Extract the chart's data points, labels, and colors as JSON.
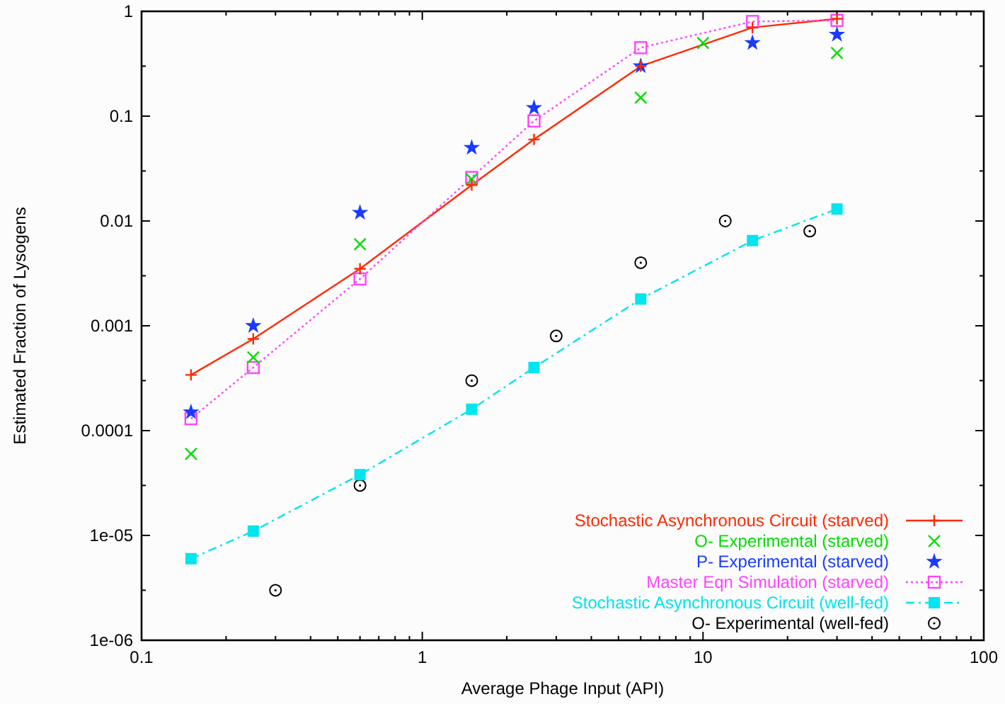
{
  "chart_data": {
    "type": "line",
    "xlabel": "Average Phage Input (API)",
    "ylabel": "Estimated Fraction of Lysogens",
    "log": "xy",
    "xlim": [
      0.1,
      100
    ],
    "ylim": [
      1e-06,
      1
    ],
    "xticks": [
      0.1,
      {
        "value": 0.2,
        "label": null
      },
      {
        "value": 0.3,
        "label": null
      },
      {
        "value": 0.4,
        "label": null
      },
      {
        "value": 0.5,
        "label": null
      },
      {
        "value": 0.6,
        "label": null
      },
      {
        "value": 0.7,
        "label": null
      },
      {
        "value": 0.8,
        "label": null
      },
      {
        "value": 0.9,
        "label": null
      },
      1,
      {
        "value": 2,
        "label": null
      },
      {
        "value": 3,
        "label": null
      },
      {
        "value": 4,
        "label": null
      },
      {
        "value": 5,
        "label": null
      },
      {
        "value": 6,
        "label": null
      },
      {
        "value": 7,
        "label": null
      },
      {
        "value": 8,
        "label": null
      },
      {
        "value": 9,
        "label": null
      },
      10,
      {
        "value": 20,
        "label": null
      },
      {
        "value": 30,
        "label": null
      },
      {
        "value": 40,
        "label": null
      },
      {
        "value": 50,
        "label": null
      },
      {
        "value": 60,
        "label": null
      },
      {
        "value": 70,
        "label": null
      },
      {
        "value": 80,
        "label": null
      },
      {
        "value": 90,
        "label": null
      },
      100
    ],
    "yticks": [
      {
        "value": 1e-06,
        "label": "1e-06"
      },
      {
        "value": 3e-06,
        "label": null
      },
      {
        "value": 1e-05,
        "label": "1e-05"
      },
      {
        "value": 3e-05,
        "label": null
      },
      {
        "value": 0.0001,
        "label": "0.0001"
      },
      {
        "value": 0.0003,
        "label": null
      },
      0.001,
      {
        "value": 0.003,
        "label": null
      },
      0.01,
      {
        "value": 0.03,
        "label": null
      },
      0.1,
      {
        "value": 0.3,
        "label": null
      },
      1
    ],
    "legend": "bottom right",
    "grid": false,
    "series": [
      {
        "name": "Stochastic Asynchronous Circuit (starved)",
        "color": "#ff2a00",
        "marker": "cross",
        "line_style": "solid",
        "x": [
          0.15,
          0.25,
          0.6,
          1.5,
          2.5,
          6,
          15,
          30
        ],
        "values": [
          0.00034,
          0.00075,
          0.0035,
          0.022,
          0.06,
          0.3,
          0.7,
          0.85
        ]
      },
      {
        "name": "O- Experimental (starved)",
        "type": "scatter",
        "color": "#00dd00",
        "marker": "x",
        "x": [
          0.15,
          0.25,
          0.6,
          1.5,
          6,
          10,
          30
        ],
        "values": [
          6e-05,
          0.0005,
          0.006,
          0.025,
          0.15,
          0.5,
          0.4
        ]
      },
      {
        "name": "P- Experimental (starved)",
        "type": "scatter",
        "color": "#1a3aff",
        "marker": "star",
        "x": [
          0.15,
          0.25,
          0.6,
          1.5,
          2.5,
          6,
          15,
          30
        ],
        "values": [
          0.00015,
          0.001,
          0.012,
          0.05,
          0.12,
          0.3,
          0.5,
          0.6
        ]
      },
      {
        "name": "Master Eqn Simulation (starved)",
        "color": "#ff44ff",
        "marker": "square",
        "line_style": "dotted",
        "x": [
          0.15,
          0.25,
          0.6,
          1.5,
          2.5,
          6,
          15,
          30
        ],
        "values": [
          0.00013,
          0.0004,
          0.0028,
          0.026,
          0.09,
          0.45,
          0.8,
          0.82
        ]
      },
      {
        "name": "Stochastic Asynchronous Circuit (well-fed)",
        "color": "#00e5ee",
        "marker": "square-filled",
        "line_style": "dashdot",
        "x": [
          0.15,
          0.25,
          0.6,
          1.5,
          2.5,
          6,
          15,
          30
        ],
        "values": [
          6e-06,
          1.1e-05,
          3.8e-05,
          0.00016,
          0.0004,
          0.0018,
          0.0065,
          0.013
        ]
      },
      {
        "name": "O- Experimental (well-fed)",
        "type": "scatter",
        "color": "#000000",
        "marker": "circle",
        "x": [
          0.3,
          0.6,
          1.5,
          3,
          6,
          12,
          24
        ],
        "values": [
          3e-06,
          3e-05,
          0.0003,
          0.0008,
          0.004,
          0.01,
          0.008
        ]
      }
    ]
  }
}
